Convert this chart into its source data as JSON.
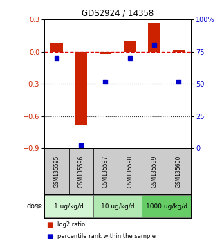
{
  "title": "GDS2924 / 14358",
  "samples": [
    "GSM135595",
    "GSM135596",
    "GSM135597",
    "GSM135598",
    "GSM135599",
    "GSM135600"
  ],
  "log2_ratio": [
    0.08,
    -0.68,
    -0.02,
    0.1,
    0.27,
    0.02
  ],
  "percentile_rank": [
    70,
    2,
    52,
    70,
    80,
    52
  ],
  "dose_groups": [
    {
      "label": "1 ug/kg/d",
      "samples": [
        0,
        1
      ],
      "color": "#d4f5d4"
    },
    {
      "label": "10 ug/kg/d",
      "samples": [
        2,
        3
      ],
      "color": "#b2e8b2"
    },
    {
      "label": "1000 ug/kg/d",
      "samples": [
        4,
        5
      ],
      "color": "#66cc66"
    }
  ],
  "ylim_left": [
    -0.9,
    0.3
  ],
  "ylim_right": [
    0,
    100
  ],
  "left_yticks": [
    -0.9,
    -0.6,
    -0.3,
    0.0,
    0.3
  ],
  "right_yticks": [
    0,
    25,
    50,
    75,
    100
  ],
  "bar_color_red": "#cc2200",
  "bar_color_blue": "#0000cc",
  "ref_line_color": "#dd0000",
  "grid_color": "#333333",
  "sample_box_color": "#cccccc",
  "dose_label": "dose"
}
